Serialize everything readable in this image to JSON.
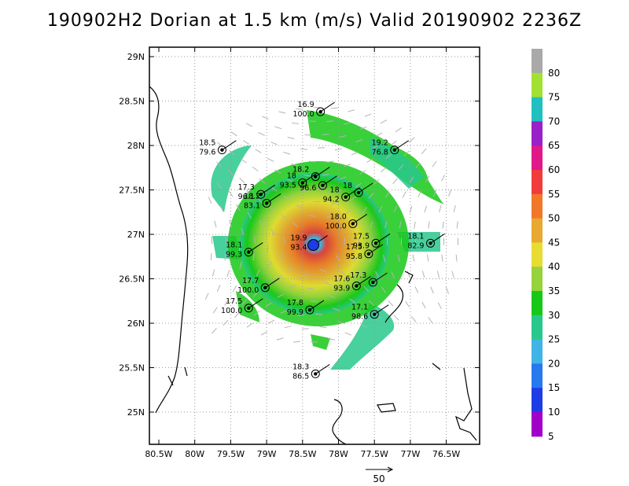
{
  "title": "190902H2 Dorian at 1.5 km (m/s) Valid 20190902 2236Z",
  "lon_labels": [
    "80.5W",
    "80W",
    "79.5W",
    "79W",
    "78.5W",
    "78W",
    "77.5W",
    "77W",
    "76.5W"
  ],
  "lat_labels": [
    "29N",
    "28.5N",
    "28N",
    "27.5N",
    "27N",
    "26.5N",
    "26N",
    "25.5N",
    "25N"
  ],
  "colorbar": {
    "labels": [
      "80",
      "75",
      "70",
      "65",
      "60",
      "55",
      "50",
      "45",
      "40",
      "35",
      "30",
      "25",
      "20",
      "15",
      "10",
      "5"
    ],
    "colors": [
      "#a9a9a9",
      "#a2e132",
      "#20c0c0",
      "#9a20c8",
      "#e0188a",
      "#f03c3c",
      "#f07828",
      "#e8a832",
      "#e6dc32",
      "#96d23c",
      "#18c818",
      "#28c88c",
      "#40b4e6",
      "#2878f0",
      "#1e3ce6",
      "#a000c8"
    ]
  },
  "center": {
    "lon": -78.35,
    "lat": 26.88
  },
  "stations": [
    {
      "lon": -78.25,
      "lat": 28.38,
      "speed": "16.9",
      "pct": "100.0"
    },
    {
      "lon": -79.62,
      "lat": 27.95,
      "speed": "18.5",
      "pct": "79.6"
    },
    {
      "lon": -77.22,
      "lat": 27.95,
      "speed": "19.2",
      "pct": "76.8"
    },
    {
      "lon": -78.32,
      "lat": 27.65,
      "speed": "18.2",
      "pct": ""
    },
    {
      "lon": -78.5,
      "lat": 27.58,
      "speed": "18",
      "pct": "93.5"
    },
    {
      "lon": -78.22,
      "lat": 27.55,
      "speed": "",
      "pct": "96.6"
    },
    {
      "lon": -77.72,
      "lat": 27.47,
      "speed": "18",
      "pct": ""
    },
    {
      "lon": -77.9,
      "lat": 27.42,
      "speed": "18",
      "pct": "94.2"
    },
    {
      "lon": -79.08,
      "lat": 27.45,
      "speed": "17.3",
      "pct": "96.1"
    },
    {
      "lon": -79.0,
      "lat": 27.35,
      "speed": "18.2",
      "pct": "83.1"
    },
    {
      "lon": -77.8,
      "lat": 27.12,
      "speed": "18.0",
      "pct": "100.0"
    },
    {
      "lon": -77.48,
      "lat": 26.9,
      "speed": "17.5",
      "pct": "93.9"
    },
    {
      "lon": -77.58,
      "lat": 26.78,
      "speed": "17.5",
      "pct": "95.8"
    },
    {
      "lon": -76.72,
      "lat": 26.9,
      "speed": "18.1",
      "pct": "82.9"
    },
    {
      "lon": -79.25,
      "lat": 26.8,
      "speed": "18.1",
      "pct": "99.3"
    },
    {
      "lon": -78.35,
      "lat": 26.88,
      "speed": "19.9",
      "pct": "93.4"
    },
    {
      "lon": -79.02,
      "lat": 26.4,
      "speed": "17.7",
      "pct": "100.0"
    },
    {
      "lon": -77.75,
      "lat": 26.42,
      "speed": "17.6",
      "pct": "93.9"
    },
    {
      "lon": -77.52,
      "lat": 26.46,
      "speed": "17.3",
      "pct": ""
    },
    {
      "lon": -79.25,
      "lat": 26.17,
      "speed": "17.5",
      "pct": "100.0"
    },
    {
      "lon": -78.4,
      "lat": 26.15,
      "speed": "17.8",
      "pct": "99.9"
    },
    {
      "lon": -77.5,
      "lat": 26.1,
      "speed": "17.1",
      "pct": "98.6"
    },
    {
      "lon": -78.32,
      "lat": 25.43,
      "speed": "18.3",
      "pct": "86.5"
    }
  ],
  "reference_vector_label": "50"
}
